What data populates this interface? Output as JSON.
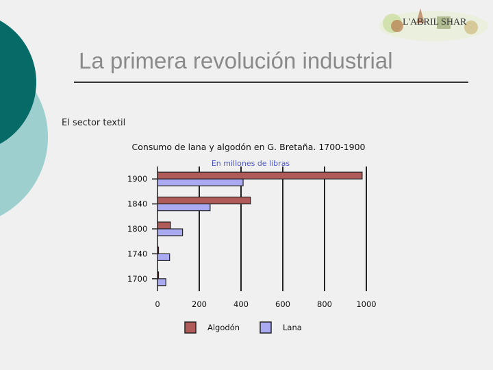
{
  "slide": {
    "title": "La primera revolución industrial",
    "subtitle": "El sector textil",
    "logo_text": "L'ABRIL SHAR"
  },
  "chart_data": {
    "type": "bar",
    "orientation": "horizontal",
    "title": "Consumo de lana y algodón en G. Bretaña. 1700-1900",
    "subtitle": "En millones de libras",
    "categories": [
      "1900",
      "1840",
      "1800",
      "1740",
      "1700"
    ],
    "series": [
      {
        "name": "Algodón",
        "color": "#b05a5a",
        "values": [
          980,
          445,
          62,
          3,
          1
        ]
      },
      {
        "name": "Lana",
        "color": "#aaaaf2",
        "values": [
          410,
          252,
          120,
          58,
          40
        ]
      }
    ],
    "xticks": [
      "0",
      "200",
      "400",
      "600",
      "800",
      "1000"
    ],
    "xlim": [
      0,
      1000
    ],
    "grid": true,
    "legend_position": "bottom"
  },
  "colors": {
    "teal_dark": "#066b66",
    "teal_light": "#9ecfcf",
    "title_gray": "#8a8a8a"
  }
}
